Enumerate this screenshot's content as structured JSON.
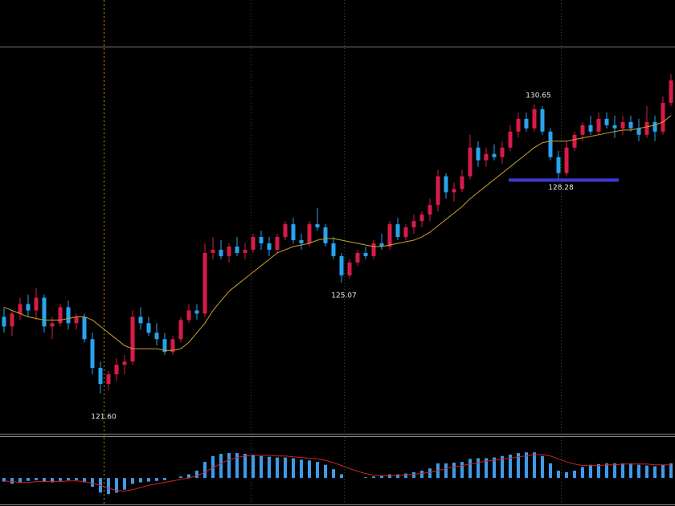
{
  "chart_data": [
    {
      "type": "candlestick",
      "open": [
        124.0,
        123.7,
        124.1,
        124.4,
        124.2,
        124.6,
        123.7,
        123.8,
        124.3,
        123.8,
        124.0,
        123.3,
        122.4,
        121.9,
        122.2,
        122.5,
        122.6,
        124.0,
        123.8,
        123.5,
        123.3,
        122.9,
        123.3,
        123.9,
        124.2,
        124.1,
        126.0,
        126.1,
        125.9,
        126.2,
        126.0,
        126.1,
        126.5,
        126.3,
        126.1,
        126.5,
        126.9,
        126.4,
        126.3,
        126.9,
        126.8,
        126.3,
        125.9,
        125.3,
        125.7,
        126.0,
        125.9,
        126.3,
        126.2,
        126.9,
        126.5,
        126.8,
        127.0,
        127.2,
        127.5,
        128.4,
        127.9,
        128.0,
        128.4,
        129.3,
        128.9,
        129.1,
        129.0,
        129.3,
        129.8,
        130.2,
        129.9,
        130.5,
        129.8,
        129.0,
        128.5,
        129.3,
        129.7,
        130.0,
        129.8,
        130.2,
        130.0,
        129.9,
        130.1,
        129.9,
        129.7,
        130.1,
        129.8,
        130.7
      ],
      "high": [
        124.3,
        124.2,
        124.6,
        124.7,
        124.9,
        124.7,
        124.0,
        124.4,
        124.5,
        124.1,
        124.1,
        123.5,
        122.6,
        122.3,
        122.7,
        122.8,
        124.2,
        124.3,
        124.0,
        123.8,
        123.5,
        123.4,
        124.0,
        124.4,
        124.4,
        126.3,
        126.5,
        126.4,
        126.3,
        126.5,
        126.3,
        126.6,
        126.7,
        126.5,
        126.6,
        127.0,
        127.1,
        126.6,
        127.0,
        127.4,
        126.9,
        126.5,
        126.0,
        125.8,
        126.1,
        126.2,
        126.4,
        126.6,
        127.0,
        127.1,
        126.9,
        127.2,
        127.3,
        127.7,
        128.6,
        128.5,
        128.2,
        128.6,
        129.7,
        129.5,
        129.3,
        129.4,
        129.5,
        130.0,
        130.4,
        130.4,
        130.65,
        130.6,
        129.9,
        129.2,
        129.5,
        129.8,
        130.1,
        130.3,
        130.4,
        130.4,
        130.3,
        130.3,
        130.3,
        130.2,
        130.6,
        130.3,
        130.9,
        131.6
      ],
      "low": [
        123.5,
        123.4,
        123.9,
        124.0,
        123.9,
        123.5,
        123.3,
        123.7,
        123.6,
        123.6,
        123.2,
        122.2,
        121.6,
        121.7,
        122.0,
        122.2,
        122.5,
        123.6,
        123.4,
        123.1,
        122.8,
        122.8,
        123.2,
        123.8,
        123.9,
        124.0,
        125.8,
        125.8,
        125.7,
        125.9,
        125.8,
        126.0,
        126.1,
        125.9,
        126.0,
        126.4,
        126.3,
        126.1,
        126.2,
        126.7,
        126.2,
        125.8,
        125.07,
        125.2,
        125.6,
        125.8,
        125.8,
        126.1,
        126.1,
        126.4,
        126.4,
        126.6,
        126.8,
        127.0,
        127.3,
        127.7,
        127.6,
        127.9,
        128.3,
        128.7,
        128.7,
        128.9,
        128.8,
        129.2,
        129.6,
        129.8,
        129.8,
        129.7,
        128.9,
        128.28,
        128.4,
        129.2,
        129.5,
        129.7,
        129.7,
        129.9,
        129.6,
        129.7,
        129.8,
        129.5,
        129.6,
        129.5,
        129.7,
        130.6
      ],
      "close": [
        123.7,
        124.1,
        124.4,
        124.2,
        124.6,
        123.7,
        123.8,
        124.3,
        123.8,
        124.0,
        123.3,
        122.4,
        121.9,
        122.2,
        122.5,
        122.6,
        124.0,
        123.8,
        123.5,
        123.3,
        122.9,
        123.3,
        123.9,
        124.2,
        124.1,
        126.0,
        126.1,
        125.9,
        126.2,
        126.0,
        126.1,
        126.5,
        126.3,
        126.1,
        126.5,
        126.9,
        126.4,
        126.3,
        126.9,
        126.8,
        126.3,
        125.9,
        125.3,
        125.7,
        126.0,
        125.9,
        126.3,
        126.2,
        126.9,
        126.5,
        126.8,
        127.0,
        127.2,
        127.5,
        128.4,
        127.9,
        128.0,
        128.4,
        129.3,
        128.9,
        129.1,
        129.0,
        129.3,
        129.8,
        130.2,
        129.9,
        130.5,
        129.8,
        129.0,
        128.5,
        129.3,
        129.7,
        130.0,
        129.8,
        130.2,
        130.0,
        129.9,
        130.1,
        129.9,
        129.7,
        130.1,
        129.8,
        130.7,
        131.4
      ],
      "up_color": "#d81b48",
      "down_color": "#29a3ef",
      "ylim": [
        120.34,
        133.92
      ],
      "overlay": {
        "type": "line",
        "color": "#c9a227",
        "values": [
          124.3,
          124.2,
          124.1,
          124.0,
          123.95,
          123.9,
          123.9,
          123.9,
          123.95,
          124.0,
          124.0,
          123.9,
          123.7,
          123.5,
          123.3,
          123.1,
          123.0,
          123.0,
          123.0,
          123.0,
          122.95,
          122.95,
          123.0,
          123.2,
          123.5,
          123.8,
          124.2,
          124.5,
          124.8,
          125.0,
          125.2,
          125.4,
          125.6,
          125.8,
          126.0,
          126.1,
          126.2,
          126.25,
          126.3,
          126.4,
          126.45,
          126.45,
          126.4,
          126.35,
          126.3,
          126.25,
          126.2,
          126.2,
          126.25,
          126.3,
          126.35,
          126.4,
          126.5,
          126.65,
          126.85,
          127.05,
          127.25,
          127.45,
          127.7,
          127.9,
          128.1,
          128.3,
          128.5,
          128.7,
          128.9,
          129.1,
          129.3,
          129.45,
          129.5,
          129.5,
          129.5,
          129.55,
          129.6,
          129.65,
          129.7,
          129.75,
          129.8,
          129.85,
          129.85,
          129.9,
          129.95,
          130.0,
          130.1,
          130.3
        ]
      },
      "annotations": [
        {
          "value": 130.65,
          "label": "130.65"
        },
        {
          "value": 125.07,
          "label": "125.07"
        },
        {
          "value": 121.6,
          "label": "121.60"
        }
      ],
      "hline": {
        "value": 128.28,
        "label": "128.28",
        "color": "#3b3bd6"
      }
    },
    {
      "type": "macd",
      "ylim": [
        -0.35,
        0.55
      ],
      "histogram": {
        "color": "#3d9be9",
        "values": [
          -0.05,
          -0.08,
          -0.06,
          -0.04,
          -0.03,
          -0.05,
          -0.06,
          -0.04,
          -0.03,
          -0.03,
          -0.06,
          -0.12,
          -0.2,
          -0.22,
          -0.2,
          -0.16,
          -0.08,
          -0.06,
          -0.05,
          -0.04,
          -0.03,
          0.0,
          0.02,
          0.05,
          0.1,
          0.22,
          0.3,
          0.33,
          0.34,
          0.34,
          0.33,
          0.32,
          0.3,
          0.29,
          0.28,
          0.28,
          0.27,
          0.25,
          0.24,
          0.22,
          0.18,
          0.12,
          0.05,
          0.0,
          0.0,
          0.01,
          0.02,
          0.03,
          0.05,
          0.05,
          0.06,
          0.08,
          0.1,
          0.13,
          0.2,
          0.2,
          0.21,
          0.22,
          0.26,
          0.27,
          0.27,
          0.28,
          0.3,
          0.32,
          0.34,
          0.35,
          0.35,
          0.3,
          0.2,
          0.1,
          0.08,
          0.1,
          0.15,
          0.18,
          0.19,
          0.2,
          0.2,
          0.2,
          0.2,
          0.18,
          0.17,
          0.16,
          0.18,
          0.2
        ]
      },
      "signal": {
        "color": "#d42020",
        "values": [
          -0.04,
          -0.05,
          -0.06,
          -0.06,
          -0.05,
          -0.05,
          -0.05,
          -0.05,
          -0.04,
          -0.04,
          -0.05,
          -0.07,
          -0.1,
          -0.14,
          -0.17,
          -0.18,
          -0.16,
          -0.13,
          -0.1,
          -0.08,
          -0.06,
          -0.04,
          -0.02,
          0.0,
          0.03,
          0.08,
          0.14,
          0.2,
          0.25,
          0.28,
          0.3,
          0.31,
          0.31,
          0.31,
          0.3,
          0.3,
          0.29,
          0.28,
          0.27,
          0.26,
          0.24,
          0.21,
          0.17,
          0.13,
          0.09,
          0.06,
          0.04,
          0.03,
          0.03,
          0.04,
          0.04,
          0.05,
          0.06,
          0.08,
          0.1,
          0.13,
          0.15,
          0.17,
          0.19,
          0.21,
          0.23,
          0.24,
          0.26,
          0.27,
          0.29,
          0.3,
          0.32,
          0.32,
          0.3,
          0.26,
          0.22,
          0.19,
          0.17,
          0.17,
          0.17,
          0.18,
          0.18,
          0.19,
          0.19,
          0.19,
          0.19,
          0.18,
          0.18,
          0.18
        ]
      }
    }
  ]
}
